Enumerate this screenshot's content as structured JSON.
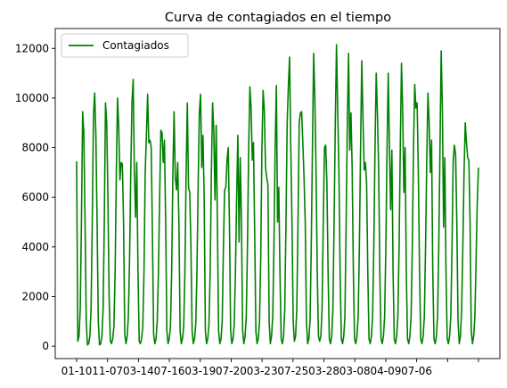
{
  "chart_data": {
    "type": "line",
    "title": "Curva de contagiados en el tiempo",
    "xlabel": "",
    "ylabel": "",
    "ylim": [
      -500,
      12800
    ],
    "yticks": [
      0,
      2000,
      4000,
      6000,
      8000,
      10000,
      12000
    ],
    "x_tick_labels": [
      "01-10",
      "11-07",
      "03-14",
      "07-16",
      "03-19",
      "07-20",
      "03-23",
      "07-25",
      "03-28",
      "03-08",
      "04-09",
      "07-06"
    ],
    "grid": false,
    "legend": {
      "placement": "top-left"
    },
    "series": [
      {
        "name": "Contagiados",
        "color": "#008000",
        "values": [
          7450,
          200,
          400,
          1500,
          5000,
          9450,
          8600,
          5000,
          1000,
          50,
          100,
          400,
          1500,
          5000,
          9300,
          10200,
          8500,
          5000,
          1000,
          50,
          100,
          400,
          1500,
          5000,
          9800,
          9000,
          6000,
          2000,
          200,
          100,
          300,
          800,
          3000,
          7000,
          10000,
          8800,
          6700,
          7400,
          7350,
          5000,
          500,
          100,
          400,
          1200,
          3500,
          7000,
          9800,
          10750,
          7000,
          5200,
          7400,
          3000,
          200,
          100,
          300,
          800,
          3000,
          7000,
          8500,
          10150,
          8200,
          8300,
          8000,
          4500,
          500,
          100,
          300,
          1000,
          3000,
          6000,
          8700,
          8600,
          7400,
          8300,
          5000,
          600,
          100,
          300,
          800,
          3000,
          7000,
          9450,
          6800,
          6300,
          7400,
          5000,
          600,
          100,
          300,
          800,
          3000,
          7000,
          9800,
          6400,
          6200,
          4000,
          600,
          100,
          300,
          900,
          3000,
          6500,
          9400,
          10150,
          7200,
          8500,
          6000,
          600,
          100,
          300,
          900,
          3000,
          7000,
          9800,
          8700,
          5900,
          8900,
          5000,
          600,
          100,
          300,
          1000,
          4000,
          6300,
          6400,
          7500,
          8000,
          5000,
          600,
          100,
          300,
          900,
          3000,
          6000,
          8500,
          4200,
          7600,
          5000,
          600,
          100,
          400,
          1200,
          4000,
          8000,
          10450,
          9600,
          7500,
          8200,
          4500,
          600,
          100,
          300,
          1000,
          3500,
          8000,
          10300,
          9500,
          7200,
          6800,
          6500,
          1000,
          100,
          400,
          1200,
          4000,
          8000,
          10500,
          5000,
          6400,
          3000,
          300,
          100,
          400,
          1500,
          5000,
          9000,
          10500,
          11650,
          8000,
          5000,
          1000,
          200,
          400,
          1500,
          5000,
          9000,
          9400,
          9450,
          8200,
          6800,
          5000,
          1000,
          100,
          300,
          1000,
          4000,
          8000,
          11800,
          10000,
          7000,
          3000,
          400,
          200,
          400,
          1500,
          5000,
          8000,
          8100,
          6600,
          3000,
          300,
          100,
          400,
          1500,
          5000,
          9000,
          12150,
          9500,
          7000,
          3000,
          300,
          100,
          400,
          1200,
          5000,
          9000,
          11800,
          7900,
          9400,
          7200,
          3000,
          300,
          100,
          400,
          1200,
          4000,
          8000,
          11500,
          9200,
          7100,
          7400,
          6600,
          3000,
          300,
          100,
          400,
          1200,
          4000,
          8000,
          11000,
          9400,
          7200,
          3000,
          300,
          100,
          400,
          1200,
          4000,
          8000,
          11000,
          8000,
          5500,
          7900,
          3000,
          300,
          100,
          400,
          1200,
          4000,
          8000,
          11400,
          9500,
          6200,
          8000,
          3000,
          300,
          100,
          400,
          1200,
          4000,
          8000,
          10550,
          9600,
          9800,
          7000,
          3000,
          300,
          100,
          400,
          1200,
          4000,
          7500,
          10200,
          9000,
          7000,
          8300,
          3000,
          300,
          100,
          400,
          1200,
          4000,
          8000,
          11900,
          9500,
          4800,
          7600,
          3000,
          300,
          100,
          400,
          1200,
          4000,
          7500,
          8100,
          7700,
          5000,
          1000,
          100,
          400,
          1500,
          4000,
          7000,
          9000,
          8200,
          7600,
          7500,
          5000,
          600,
          100,
          400,
          1200,
          3500,
          5800,
          7200
        ]
      }
    ]
  }
}
